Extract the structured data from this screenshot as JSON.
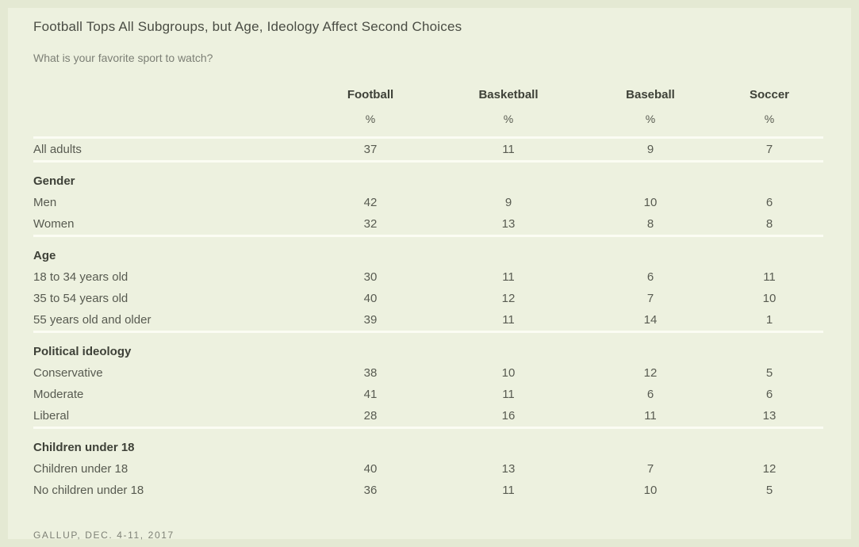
{
  "page": {
    "title": "Football Tops All Subgroups, but Age, Ideology Affect Second Choices",
    "subtitle": "What is your favorite sport to watch?",
    "source": "GALLUP, DEC. 4-11, 2017",
    "colors": {
      "page_background": "#e4e9d3",
      "card_background": "#edf1df",
      "separator_line": "#fbfcf3",
      "title_text": "#4a4d44",
      "body_text": "#575a50",
      "bold_text": "#3e4138",
      "muted_text": "#7c7f75"
    }
  },
  "chart_data": {
    "type": "table",
    "title": "Football Tops All Subgroups, but Age, Ideology Affect Second Choices",
    "question": "What is your favorite sport to watch?",
    "columns": [
      "Football",
      "Basketball",
      "Baseball",
      "Soccer"
    ],
    "unit": "%",
    "sections": [
      {
        "header": "",
        "rows": [
          {
            "label": "All adults",
            "values": [
              37,
              11,
              9,
              7
            ]
          }
        ]
      },
      {
        "header": "Gender",
        "rows": [
          {
            "label": "Men",
            "values": [
              42,
              9,
              10,
              6
            ]
          },
          {
            "label": "Women",
            "values": [
              32,
              13,
              8,
              8
            ]
          }
        ]
      },
      {
        "header": "Age",
        "rows": [
          {
            "label": "18 to 34 years old",
            "values": [
              30,
              11,
              6,
              11
            ]
          },
          {
            "label": "35 to 54 years old",
            "values": [
              40,
              12,
              7,
              10
            ]
          },
          {
            "label": "55 years old and older",
            "values": [
              39,
              11,
              14,
              1
            ]
          }
        ]
      },
      {
        "header": "Political ideology",
        "rows": [
          {
            "label": "Conservative",
            "values": [
              38,
              10,
              12,
              5
            ]
          },
          {
            "label": "Moderate",
            "values": [
              41,
              11,
              6,
              6
            ]
          },
          {
            "label": "Liberal",
            "values": [
              28,
              16,
              11,
              13
            ]
          }
        ]
      },
      {
        "header": "Children under 18",
        "rows": [
          {
            "label": "Children under 18",
            "values": [
              40,
              13,
              7,
              12
            ]
          },
          {
            "label": "No children under 18",
            "values": [
              36,
              11,
              10,
              5
            ]
          }
        ]
      }
    ],
    "source": "GALLUP, DEC. 4-11, 2017"
  }
}
